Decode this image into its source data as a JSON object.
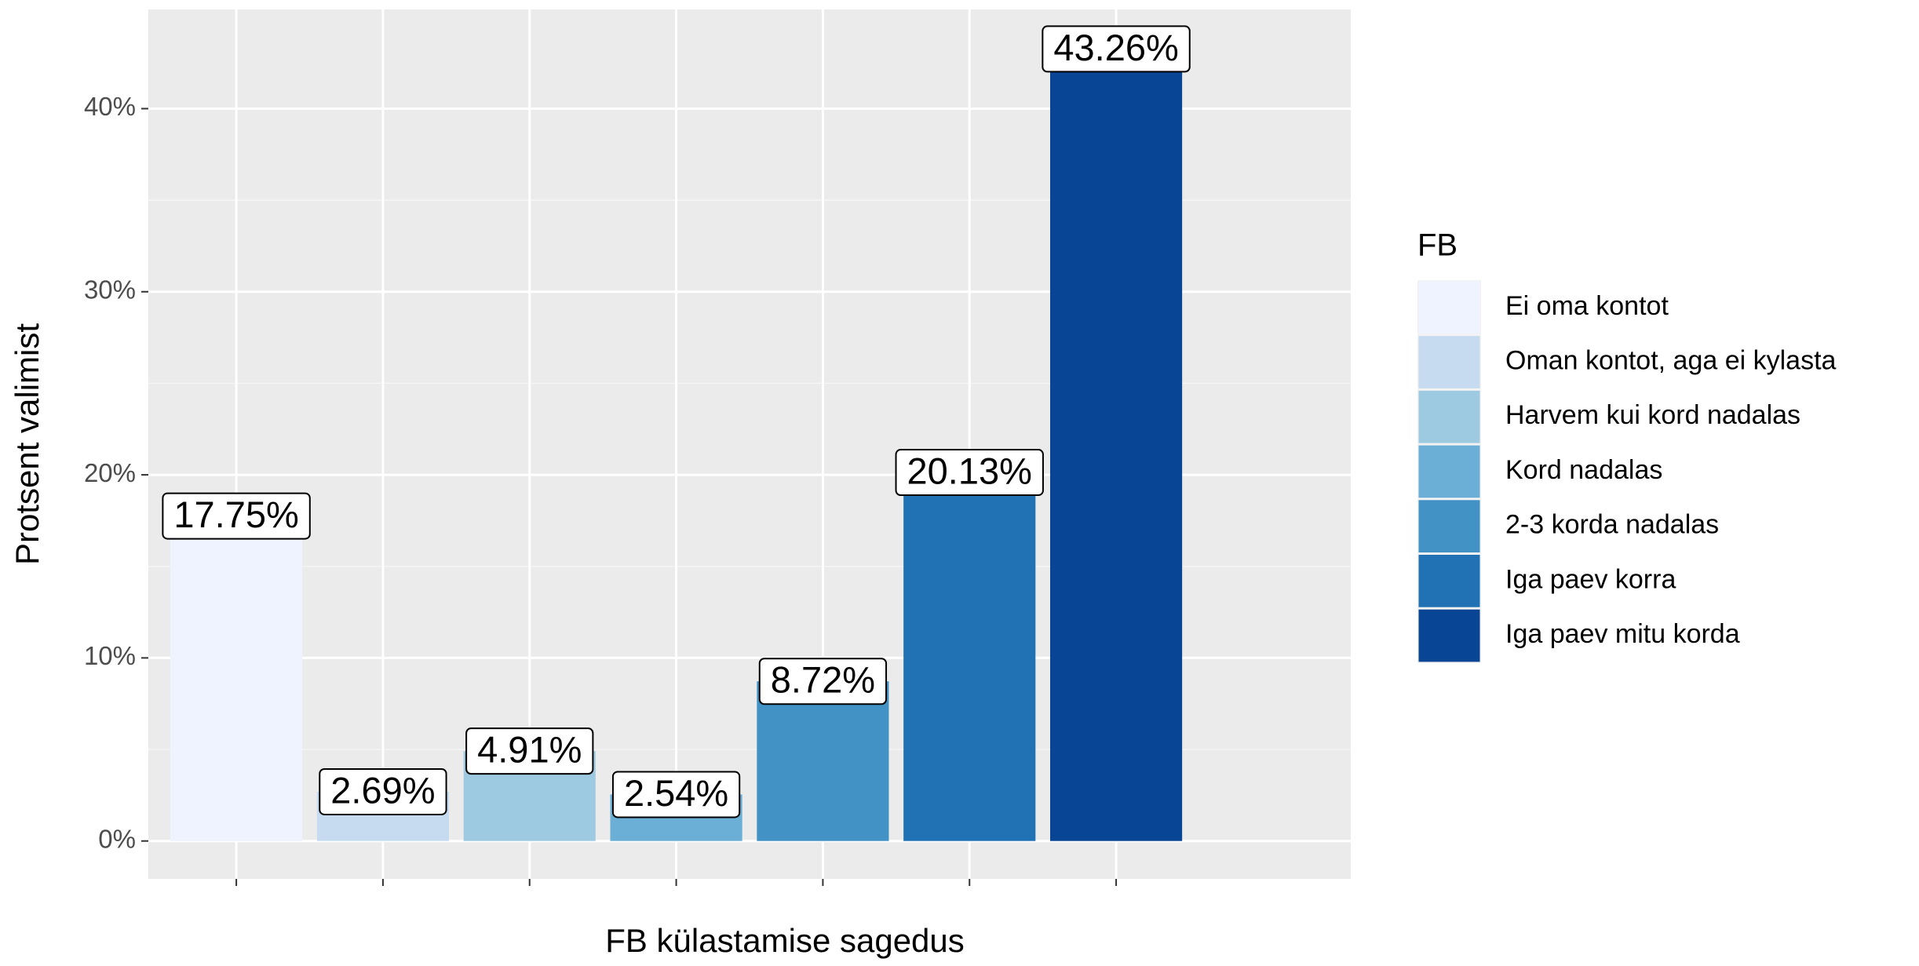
{
  "chart_data": {
    "type": "bar",
    "x_label": "FB külastamise sagedus",
    "y_label": "Protsent valimist",
    "legend_title": "FB",
    "legend_position": "right",
    "categories": [
      "Ei oma kontot",
      "Oman kontot, aga ei kylasta",
      "Harvem kui kord nadalas",
      "Kord nadalas",
      "2-3 korda nadalas",
      "Iga paev korra",
      "Iga paev mitu korda"
    ],
    "values": [
      17.75,
      2.69,
      4.91,
      2.54,
      8.72,
      20.13,
      43.26
    ],
    "value_labels": [
      "17.75%",
      "2.69%",
      "4.91%",
      "2.54%",
      "8.72%",
      "20.13%",
      "43.26%"
    ],
    "colors": [
      "#eff3ff",
      "#c6dbef",
      "#9ecae1",
      "#6baed6",
      "#4292c6",
      "#2171b5",
      "#084594"
    ],
    "ylim": [
      -2.07,
      45.42
    ],
    "yticks": [
      {
        "value": 0,
        "label": "0%"
      },
      {
        "value": 10,
        "label": "10%"
      },
      {
        "value": 20,
        "label": "20%"
      },
      {
        "value": 30,
        "label": "30%"
      },
      {
        "value": 40,
        "label": "40%"
      }
    ],
    "grid": true
  }
}
